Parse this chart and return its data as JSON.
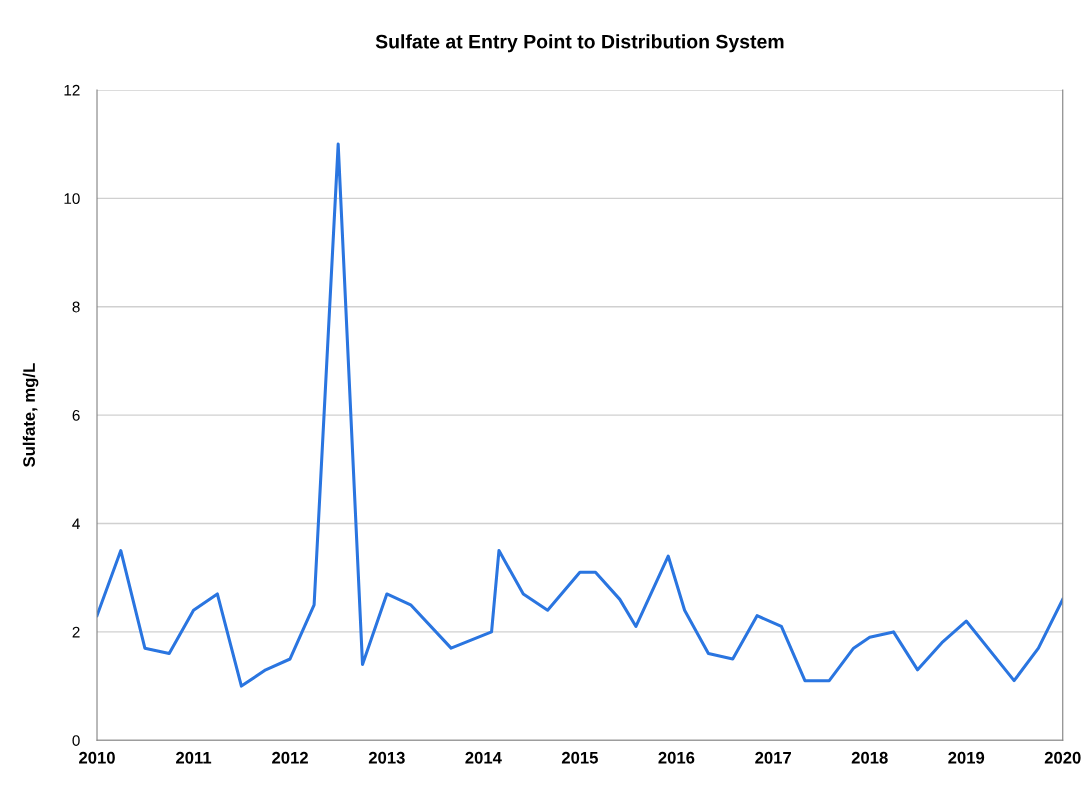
{
  "chart_data": {
    "type": "line",
    "title": "Sulfate at Entry Point to Distribution System",
    "ylabel": "Sulfate, mg/L",
    "x": [
      "2010-01",
      "2010-04",
      "2010-07",
      "2010-10",
      "2011-01",
      "2011-04",
      "2011-07",
      "2011-10",
      "2012-01",
      "2012-04",
      "2012-07",
      "2012-10",
      "2013-01",
      "2013-04",
      "2013-09",
      "2014-02",
      "2014-03",
      "2014-06",
      "2014-09",
      "2015-01",
      "2015-03",
      "2015-06",
      "2015-08",
      "2015-12",
      "2016-02",
      "2016-05",
      "2016-08",
      "2016-11",
      "2017-02",
      "2017-05",
      "2017-08",
      "2017-11",
      "2018-01",
      "2018-04",
      "2018-07",
      "2018-10",
      "2019-01",
      "2019-07",
      "2019-10",
      "2020-01"
    ],
    "series": [
      {
        "color": "#2a75e0",
        "values": [
          2.3,
          3.5,
          1.7,
          1.6,
          2.4,
          2.7,
          1.0,
          1.3,
          1.5,
          2.5,
          11.0,
          1.4,
          2.7,
          2.5,
          1.7,
          2.0,
          3.5,
          2.7,
          2.4,
          3.1,
          3.1,
          2.6,
          2.1,
          3.4,
          2.4,
          1.6,
          1.5,
          2.3,
          2.1,
          1.1,
          1.1,
          1.7,
          1.9,
          2.0,
          1.3,
          1.8,
          2.2,
          1.1,
          1.7,
          2.6
        ]
      }
    ],
    "xlim": [
      "2010-01",
      "2020-01"
    ],
    "xticks": [
      "2010",
      "2011",
      "2012",
      "2013",
      "2014",
      "2015",
      "2016",
      "2017",
      "2018",
      "2019",
      "2020"
    ],
    "ylim": [
      0,
      12
    ],
    "yticks": [
      0,
      2,
      4,
      6,
      8,
      10,
      12
    ],
    "grid": "y",
    "legend": false,
    "marker": "none",
    "line_style": "solid"
  }
}
